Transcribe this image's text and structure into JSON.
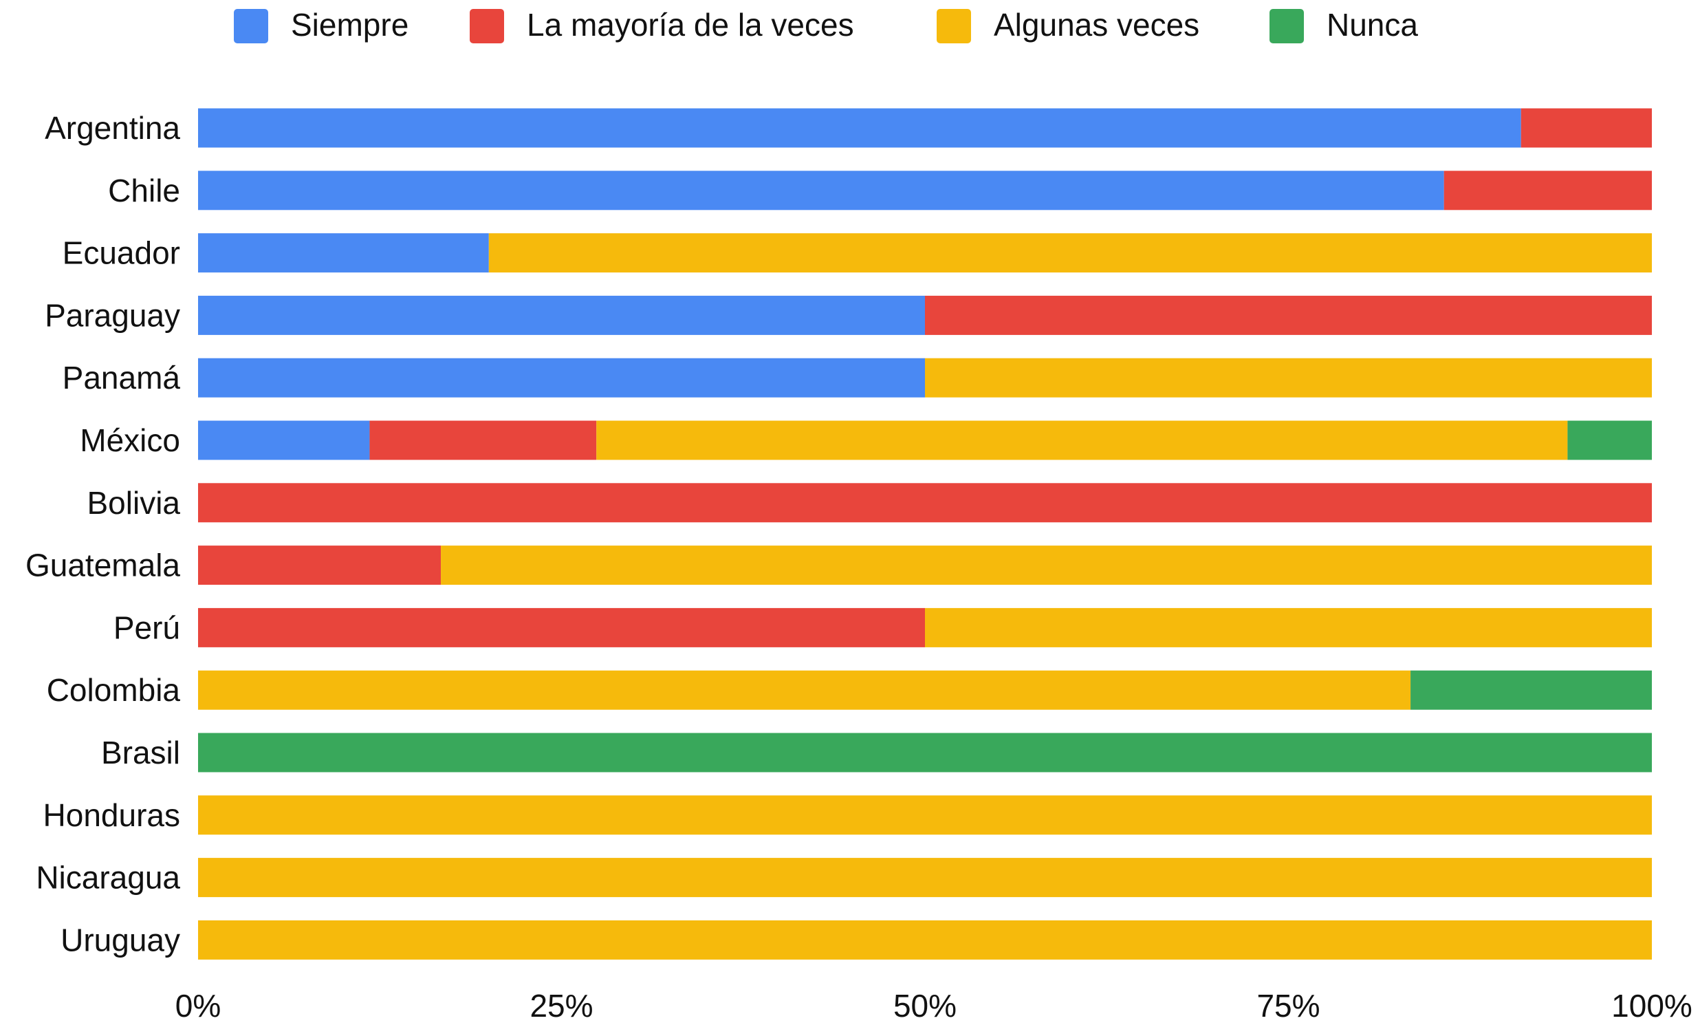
{
  "chart_data": {
    "type": "bar",
    "orientation": "horizontal",
    "stacked": true,
    "normalized": true,
    "categories": [
      "Argentina",
      "Chile",
      "Ecuador",
      "Paraguay",
      "Panamá",
      "México",
      "Bolivia",
      "Guatemala",
      "Perú",
      "Colombia",
      "Brasil",
      "Honduras",
      "Nicaragua",
      "Uruguay"
    ],
    "series": [
      {
        "name": "Siempre",
        "color": "#4A89F3",
        "values": [
          91,
          85.7,
          20,
          50,
          50,
          11.8,
          0,
          0,
          0,
          0,
          0,
          0,
          0,
          0
        ]
      },
      {
        "name": "La mayoría de la veces",
        "color": "#E8453C",
        "values": [
          9,
          14.3,
          0,
          50,
          0,
          15.6,
          100,
          16.7,
          50,
          0,
          0,
          0,
          0,
          0
        ]
      },
      {
        "name": "Algunas veces",
        "color": "#F6BA0C",
        "values": [
          0,
          0,
          80,
          0,
          50,
          66.8,
          0,
          83.3,
          50,
          83.4,
          0,
          100,
          100,
          100
        ]
      },
      {
        "name": "Nunca",
        "color": "#39A85B",
        "values": [
          0,
          0,
          0,
          0,
          0,
          5.8,
          0,
          0,
          0,
          16.6,
          100,
          0,
          0,
          0
        ]
      }
    ],
    "xticks": [
      "0%",
      "25%",
      "50%",
      "75%",
      "100%"
    ],
    "xlim": [
      0,
      100
    ],
    "legend_position": "top",
    "grid": false,
    "title": "",
    "xlabel": "",
    "ylabel": ""
  }
}
